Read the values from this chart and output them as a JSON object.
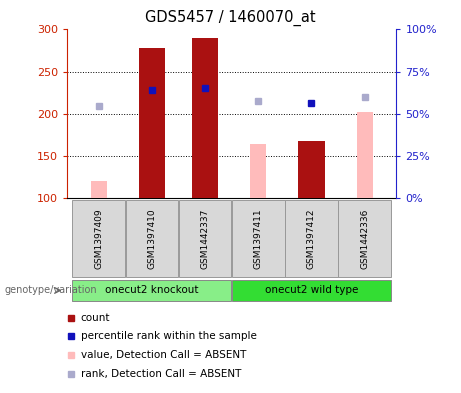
{
  "title": "GDS5457 / 1460070_at",
  "samples": [
    "GSM1397409",
    "GSM1397410",
    "GSM1442337",
    "GSM1397411",
    "GSM1397412",
    "GSM1442336"
  ],
  "ylim_left": [
    100,
    300
  ],
  "ylim_right": [
    0,
    100
  ],
  "yticks_left": [
    100,
    150,
    200,
    250,
    300
  ],
  "yticks_right": [
    0,
    25,
    50,
    75,
    100
  ],
  "ytick_labels_right": [
    "0%",
    "25%",
    "50%",
    "75%",
    "100%"
  ],
  "count_values": [
    null,
    278,
    290,
    null,
    168,
    null
  ],
  "count_absent_values": [
    121,
    null,
    null,
    164,
    null,
    202
  ],
  "rank_values": [
    null,
    228,
    231,
    null,
    213,
    null
  ],
  "rank_absent_values": [
    209,
    null,
    null,
    215,
    null,
    220
  ],
  "bar_color": "#aa1111",
  "bar_absent_color": "#ffbbbb",
  "rank_color": "#1111bb",
  "rank_absent_color": "#aaaacc",
  "sample_box_color": "#d8d8d8",
  "group_color_ko": "#88ee88",
  "group_color_wt": "#33dd33",
  "left_axis_color": "#cc2200",
  "right_axis_color": "#2222cc",
  "bar_width": 0.5,
  "legend_items": [
    {
      "color": "#aa1111",
      "label": "count"
    },
    {
      "color": "#1111bb",
      "label": "percentile rank within the sample"
    },
    {
      "color": "#ffbbbb",
      "label": "value, Detection Call = ABSENT"
    },
    {
      "color": "#aaaacc",
      "label": "rank, Detection Call = ABSENT"
    }
  ]
}
